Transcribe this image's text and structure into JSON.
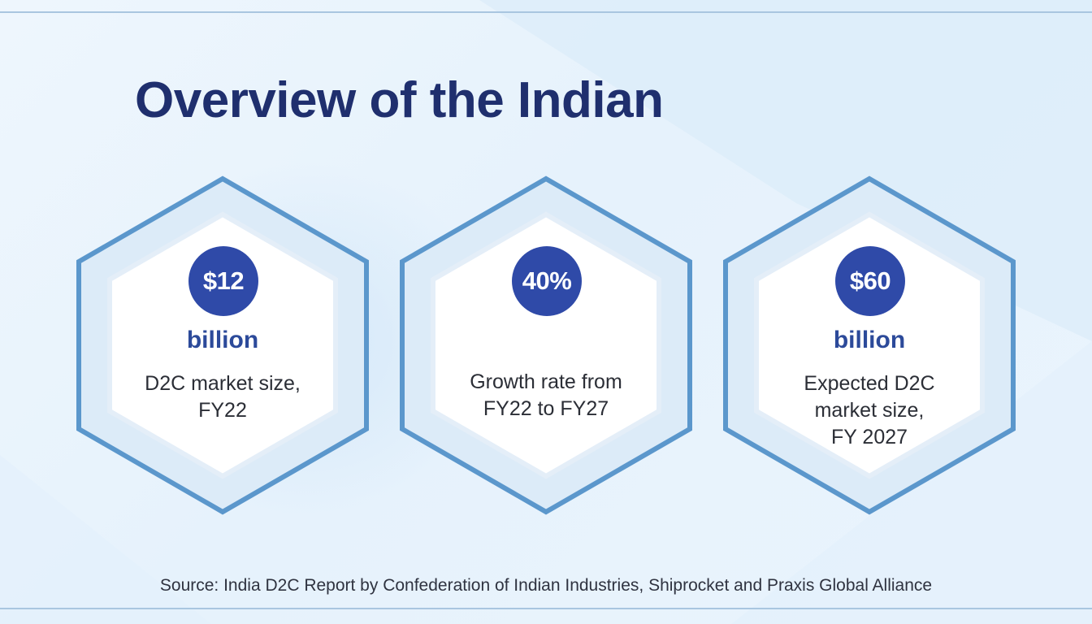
{
  "title": "Overview of the Indian",
  "cards": [
    {
      "value": "$12",
      "unit": "billion",
      "description": [
        "D2C market size,",
        "FY22"
      ]
    },
    {
      "value": "40%",
      "unit": "",
      "description": [
        "Growth rate from",
        "FY22 to FY27"
      ]
    },
    {
      "value": "$60",
      "unit": "billion",
      "description": [
        "Expected D2C",
        "market size,",
        "FY 2027"
      ]
    }
  ],
  "source": "Source: India D2C Report by Confederation of Indian Industries, Shiprocket and Praxis Global Alliance",
  "colors": {
    "title": "#1f2f6e",
    "badge": "#2f4aa8",
    "unit": "#2c4a9a",
    "hex_border": "#5b97cc",
    "background": "#e9f3fc"
  }
}
